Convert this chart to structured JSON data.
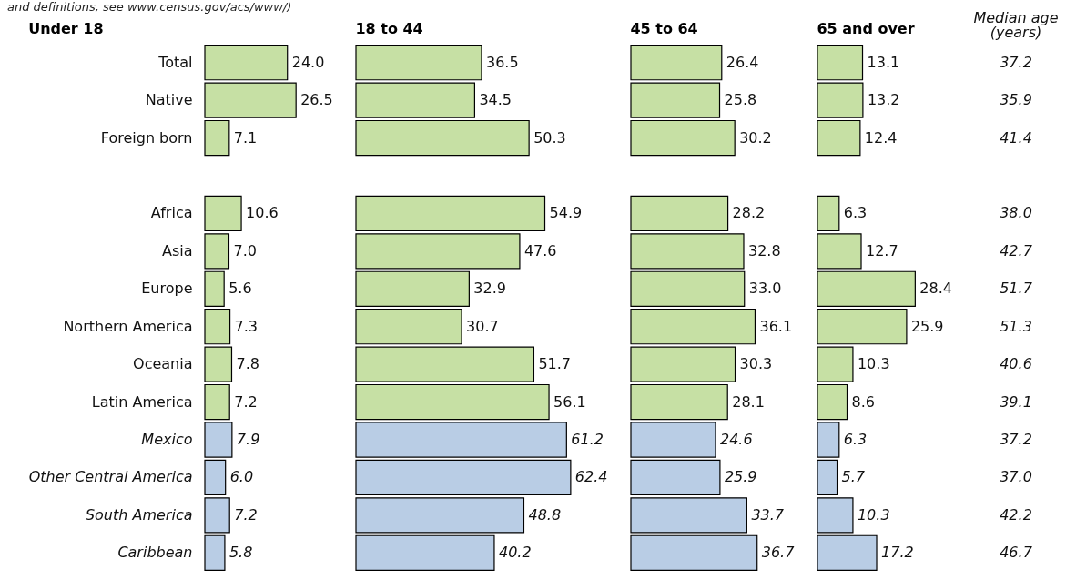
{
  "chart_data": [
    {
      "type": "bar",
      "orientation": "horizontal",
      "title": "Under 18",
      "annotations": [
        "and definitions, see www.census.gov/acs/www/)"
      ],
      "categories": [
        "Total",
        "Native",
        "Foreign born",
        null,
        "Africa",
        "Asia",
        "Europe",
        "Northern America",
        "Oceania",
        "Latin America",
        "Mexico",
        "Other Central America",
        "South America",
        "Caribbean"
      ],
      "tick_labels": "y",
      "values": [
        24.0,
        26.5,
        7.1,
        null,
        10.6,
        7.0,
        5.6,
        7.3,
        7.8,
        7.2,
        7.9,
        6.0,
        7.2,
        5.8
      ],
      "value_labels": [
        "24.0",
        "26.5",
        "7.1",
        null,
        "10.6",
        "7.0",
        "5.6",
        "7.3",
        "7.8",
        "7.2",
        "7.9",
        "6.0",
        "7.2",
        "5.8"
      ],
      "colors": [
        "#c6e0a4",
        "#c6e0a4",
        "#c6e0a4",
        null,
        "#c6e0a4",
        "#c6e0a4",
        "#c6e0a4",
        "#c6e0a4",
        "#c6e0a4",
        "#c6e0a4",
        "#b9cde5",
        "#b9cde5",
        "#b9cde5",
        "#b9cde5"
      ]
    },
    {
      "type": "bar",
      "orientation": "horizontal",
      "title": "18 to 44",
      "values": [
        36.5,
        34.5,
        50.3,
        null,
        54.9,
        47.6,
        32.9,
        30.7,
        51.7,
        56.1,
        61.2,
        62.4,
        48.8,
        40.2
      ],
      "value_labels": [
        "36.5",
        "34.5",
        "50.3",
        null,
        "54.9",
        "47.6",
        "32.9",
        "30.7",
        "51.7",
        "56.1",
        "61.2",
        "62.4",
        "48.8",
        "40.2"
      ],
      "colors": [
        "#c6e0a4",
        "#c6e0a4",
        "#c6e0a4",
        null,
        "#c6e0a4",
        "#c6e0a4",
        "#c6e0a4",
        "#c6e0a4",
        "#c6e0a4",
        "#c6e0a4",
        "#b9cde5",
        "#b9cde5",
        "#b9cde5",
        "#b9cde5"
      ]
    },
    {
      "type": "bar",
      "orientation": "horizontal",
      "title": "45 to 64",
      "values": [
        26.4,
        25.8,
        30.2,
        null,
        28.2,
        32.8,
        33.0,
        36.1,
        30.3,
        28.1,
        24.6,
        25.9,
        33.7,
        36.7
      ],
      "value_labels": [
        "26.4",
        "25.8",
        "30.2",
        null,
        "28.2",
        "32.8",
        "33.0",
        "36.1",
        "30.3",
        "28.1",
        "24.6",
        "25.9",
        "33.7",
        "36.7"
      ],
      "colors": [
        "#c6e0a4",
        "#c6e0a4",
        "#c6e0a4",
        null,
        "#c6e0a4",
        "#c6e0a4",
        "#c6e0a4",
        "#c6e0a4",
        "#c6e0a4",
        "#c6e0a4",
        "#b9cde5",
        "#b9cde5",
        "#b9cde5",
        "#b9cde5"
      ]
    },
    {
      "type": "bar",
      "orientation": "horizontal",
      "title": "65 and over",
      "values": [
        13.1,
        13.2,
        12.4,
        null,
        6.3,
        12.7,
        28.4,
        25.9,
        10.3,
        8.6,
        6.3,
        5.7,
        10.3,
        17.2
      ],
      "value_labels": [
        "13.1",
        "13.2",
        "12.4",
        null,
        "6.3",
        "12.7",
        "28.4",
        "25.9",
        "10.3",
        "8.6",
        "6.3",
        "5.7",
        "10.3",
        "17.2"
      ],
      "colors": [
        "#c6e0a4",
        "#c6e0a4",
        "#c6e0a4",
        null,
        "#c6e0a4",
        "#c6e0a4",
        "#c6e0a4",
        "#c6e0a4",
        "#c6e0a4",
        "#c6e0a4",
        "#b9cde5",
        "#b9cde5",
        "#b9cde5",
        "#b9cde5"
      ]
    },
    {
      "type": "other",
      "title": "Median age",
      "subtitle": "(years)",
      "values": [
        37.2,
        35.9,
        41.4,
        null,
        38.0,
        42.7,
        51.7,
        51.3,
        40.6,
        39.1,
        37.2,
        37.0,
        42.2,
        46.7
      ],
      "value_labels": [
        "37.2",
        "35.9",
        "41.4",
        null,
        "38.0",
        "42.7",
        "51.7",
        "51.3",
        "40.6",
        "39.1",
        "37.2",
        "37.0",
        "42.2",
        "46.7"
      ]
    }
  ]
}
